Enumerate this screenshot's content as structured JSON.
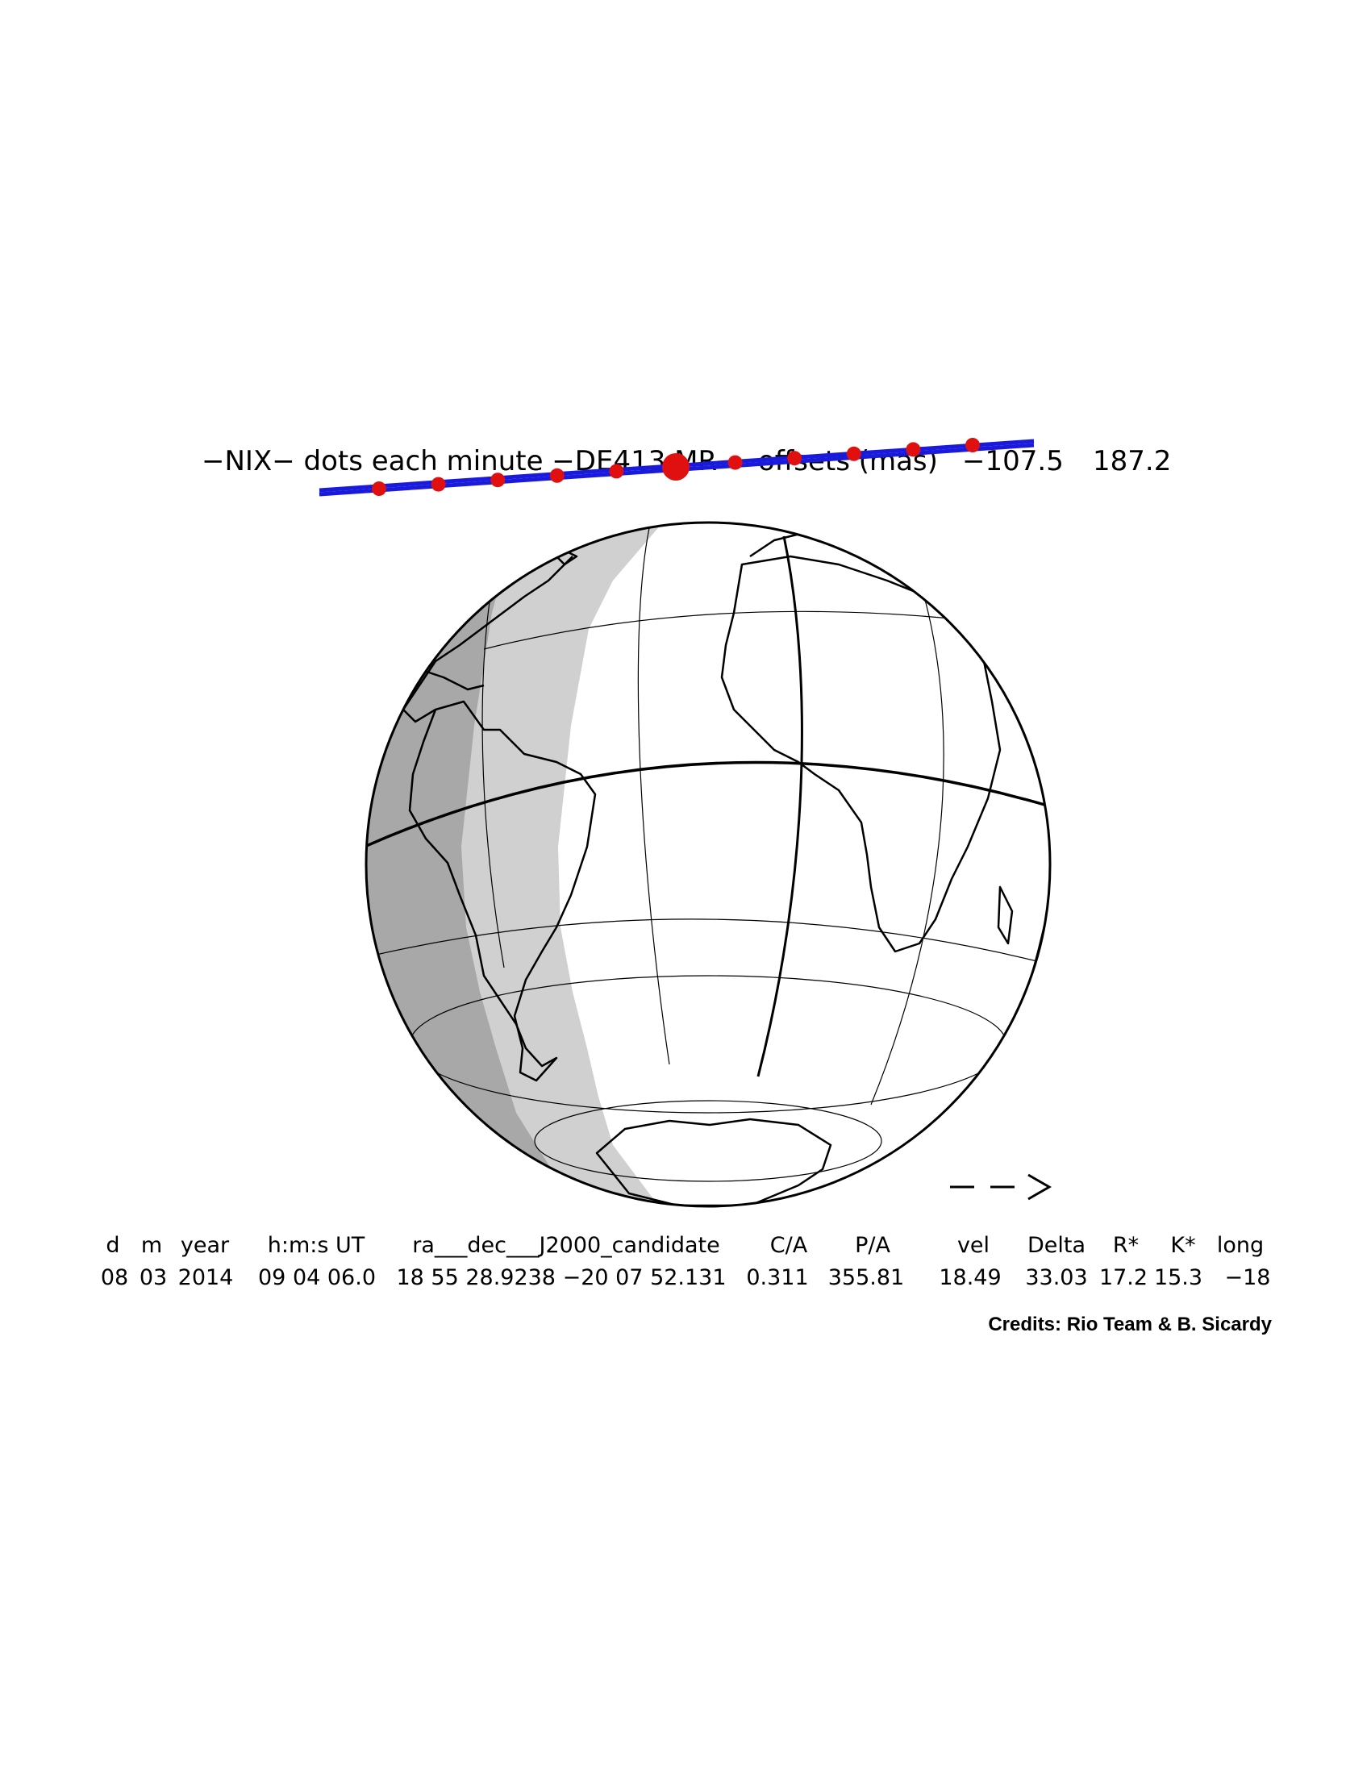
{
  "title": {
    "prefix": "−NIX− dots each minute −DE413 MR",
    "offsets_label": "offsets (mas)",
    "offset_1": "−107.5",
    "offset_2": "187.2"
  },
  "table": {
    "headers": [
      "d",
      "m",
      "year",
      "h:m:s UT",
      "ra___dec___J2000_candidate",
      "C/A",
      "P/A",
      "vel",
      "Delta",
      "R*",
      "K*",
      "long"
    ],
    "values": [
      "08",
      "03",
      "2014",
      "09 04 06.0",
      "18 55 28.9238 −20 07 52.131",
      "0.311",
      "355.81",
      "18.49",
      "33.03",
      "17.2",
      "15.3",
      "−18"
    ]
  },
  "direction_arrow": "– – >",
  "credits": "Credits: Rio Team & B. Sicardy",
  "colors": {
    "shadow_track": "#1a1adc",
    "minute_dots": "#e01010",
    "night_dark": "#a8a8a8",
    "twilight_light": "#d0d0d0",
    "day": "#ffffff",
    "outline": "#000000"
  },
  "map": {
    "projection": "orthographic globe",
    "minute_dot_count": 11,
    "closest_approach_index": 5
  }
}
